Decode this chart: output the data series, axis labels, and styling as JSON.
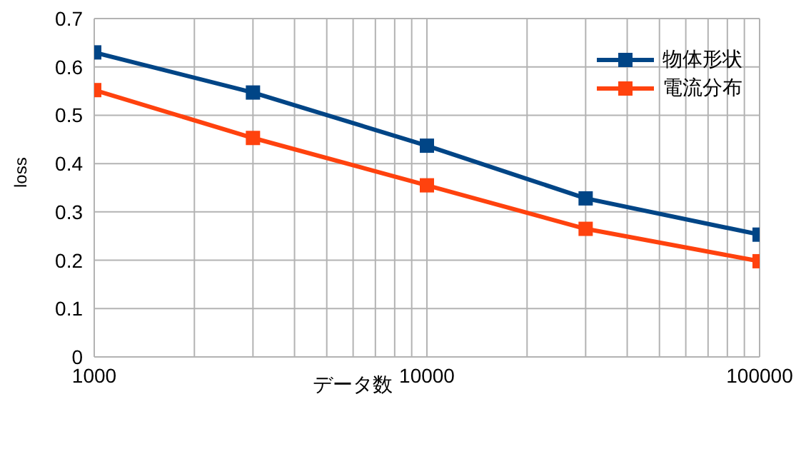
{
  "chart_data": {
    "type": "line",
    "xlabel": "データ数",
    "ylabel": "loss",
    "log": "x",
    "x": [
      1000,
      3000,
      10000,
      30000,
      100000
    ],
    "series": [
      {
        "name": "物体形状",
        "color": "#004586",
        "values": [
          0.63,
          0.547,
          0.437,
          0.328,
          0.253
        ]
      },
      {
        "name": "電流分布",
        "color": "#ff420e",
        "values": [
          0.552,
          0.453,
          0.355,
          0.265,
          0.198
        ]
      }
    ],
    "xlim": [
      1000,
      100000
    ],
    "xticks": [
      1000,
      {
        "value": 2000,
        "label": null
      },
      {
        "value": 3000,
        "label": null
      },
      {
        "value": 4000,
        "label": null
      },
      {
        "value": 5000,
        "label": null
      },
      {
        "value": 6000,
        "label": null
      },
      {
        "value": 7000,
        "label": null
      },
      {
        "value": 8000,
        "label": null
      },
      {
        "value": 9000,
        "label": null
      },
      10000,
      {
        "value": 20000,
        "label": null
      },
      {
        "value": 30000,
        "label": null
      },
      {
        "value": 40000,
        "label": null
      },
      {
        "value": 50000,
        "label": null
      },
      {
        "value": 60000,
        "label": null
      },
      {
        "value": 70000,
        "label": null
      },
      {
        "value": 80000,
        "label": null
      },
      {
        "value": 90000,
        "label": null
      },
      100000
    ],
    "ylim": [
      0,
      0.7
    ],
    "yticks": [
      0,
      0.1,
      0.2,
      0.3,
      0.4,
      0.5,
      0.6,
      0.7
    ],
    "grid": true,
    "legend": "top right",
    "marker": "square",
    "line_style": "solid"
  }
}
